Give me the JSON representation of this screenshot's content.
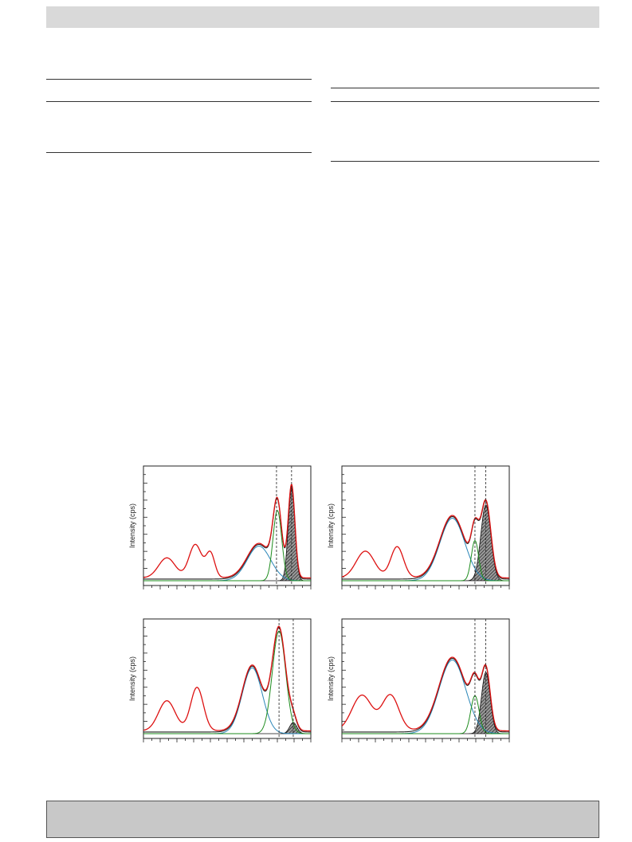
{
  "chart_data": [
    {
      "type": "line",
      "ylabel": "Intensity (cps)",
      "xlim": [
        0,
        100
      ],
      "ylim": [
        0,
        100
      ],
      "colors": {
        "envelope": "#dd1111",
        "blue": "#2a86b8",
        "green": "#1e8c1e",
        "black": "#222222",
        "hatch": "#444444"
      },
      "peaks": [
        {
          "series": "red",
          "center": 14,
          "width": 5,
          "height": 18
        },
        {
          "series": "red",
          "center": 31,
          "width": 3.8,
          "height": 30
        },
        {
          "series": "red",
          "center": 40,
          "width": 2.6,
          "height": 22
        },
        {
          "series": "blue",
          "center": 69,
          "width": 7,
          "height": 31
        },
        {
          "series": "green",
          "center": 80,
          "width": 2.6,
          "height": 63
        },
        {
          "series": "hatched",
          "center": 88.5,
          "width": 2.0,
          "height": 83
        }
      ],
      "vlines": [
        79.5,
        88.5
      ]
    },
    {
      "type": "line",
      "ylabel": "Intensity (cps)",
      "xlim": [
        0,
        100
      ],
      "ylim": [
        0,
        100
      ],
      "colors": {
        "envelope": "#dd1111",
        "blue": "#2a86b8",
        "green": "#1e8c1e",
        "black": "#222222",
        "hatch": "#444444"
      },
      "peaks": [
        {
          "series": "red",
          "center": 14,
          "width": 5.5,
          "height": 24
        },
        {
          "series": "red",
          "center": 33,
          "width": 3.8,
          "height": 28
        },
        {
          "series": "blue",
          "center": 66,
          "width": 7.5,
          "height": 56
        },
        {
          "series": "green",
          "center": 79.5,
          "width": 2.2,
          "height": 36
        },
        {
          "series": "hatched",
          "center": 86,
          "width": 3.0,
          "height": 68
        }
      ],
      "vlines": [
        79.5,
        86
      ]
    },
    {
      "type": "line",
      "ylabel": "Intensity (cps)",
      "xlim": [
        0,
        100
      ],
      "ylim": [
        0,
        100
      ],
      "colors": {
        "envelope": "#dd1111",
        "blue": "#2a86b8",
        "green": "#1e8c1e",
        "black": "#222222",
        "hatch": "#444444"
      },
      "peaks": [
        {
          "series": "red",
          "center": 14,
          "width": 5,
          "height": 27
        },
        {
          "series": "red",
          "center": 32,
          "width": 3.8,
          "height": 39
        },
        {
          "series": "blue",
          "center": 65,
          "width": 6,
          "height": 59
        },
        {
          "series": "green",
          "center": 81,
          "width": 4,
          "height": 92
        },
        {
          "series": "hatched",
          "center": 89.5,
          "width": 2.2,
          "height": 10
        }
      ],
      "vlines": [
        81,
        89.5
      ]
    },
    {
      "type": "line",
      "ylabel": "Intensity (cps)",
      "xlim": [
        0,
        100
      ],
      "ylim": [
        0,
        100
      ],
      "colors": {
        "envelope": "#dd1111",
        "blue": "#2a86b8",
        "green": "#1e8c1e",
        "black": "#222222",
        "hatch": "#444444"
      },
      "peaks": [
        {
          "series": "red",
          "center": 12,
          "width": 6,
          "height": 32
        },
        {
          "series": "red",
          "center": 29,
          "width": 5,
          "height": 32
        },
        {
          "series": "blue",
          "center": 66,
          "width": 8,
          "height": 66
        },
        {
          "series": "green",
          "center": 79.5,
          "width": 2.5,
          "height": 34
        },
        {
          "series": "hatched",
          "center": 86,
          "width": 2.6,
          "height": 55
        }
      ],
      "vlines": [
        79.5,
        86
      ]
    }
  ]
}
